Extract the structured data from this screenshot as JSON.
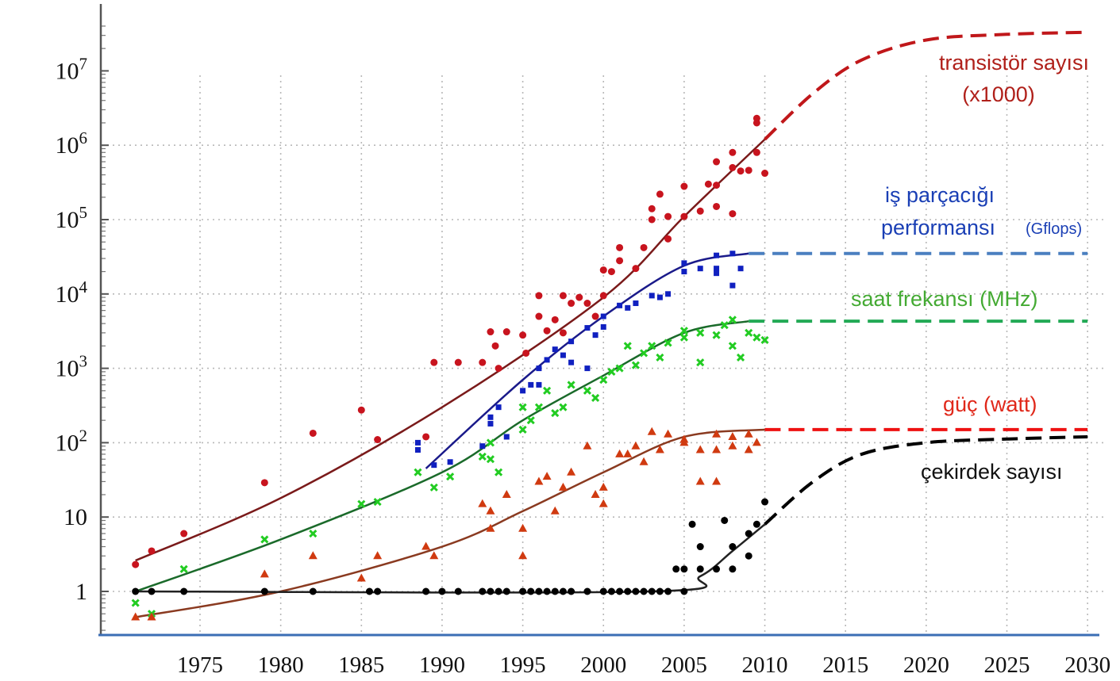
{
  "chart_data": {
    "type": "scatter",
    "title": "",
    "xlabel": "",
    "ylabel": "",
    "y_scale": "log",
    "xlim": [
      1969,
      2031
    ],
    "ylim": [
      0.26,
      40000000
    ],
    "grid": true,
    "x_ticks": [
      "1975",
      "1980",
      "1985",
      "1990",
      "1995",
      "2000",
      "2005",
      "2010",
      "2015",
      "2020",
      "2025",
      "2030"
    ],
    "x_tick_values": [
      1975,
      1980,
      1985,
      1990,
      1995,
      2000,
      2005,
      2010,
      2015,
      2020,
      2025,
      2030
    ],
    "y_ticks": [
      {
        "value": 10000000,
        "base": "10",
        "exp": "7"
      },
      {
        "value": 1000000,
        "base": "10",
        "exp": "6"
      },
      {
        "value": 100000,
        "base": "10",
        "exp": "5"
      },
      {
        "value": 10000,
        "base": "10",
        "exp": "4"
      },
      {
        "value": 1000,
        "base": "10",
        "exp": "3"
      },
      {
        "value": 100,
        "base": "10",
        "exp": "2"
      },
      {
        "value": 10,
        "base": "10",
        "exp": ""
      },
      {
        "value": 1,
        "base": "1",
        "exp": ""
      }
    ],
    "series": [
      {
        "name": "transistor-count",
        "label_lines": [
          "transistör sayısı",
          "(x1000)"
        ],
        "marker": "circle",
        "color": "#c8141e",
        "line_color": "#7a1a1a",
        "proj_color": "#c0171a",
        "points": [
          [
            1971,
            2.3
          ],
          [
            1972,
            3.5
          ],
          [
            1974,
            6
          ],
          [
            1979,
            29
          ],
          [
            1982,
            134
          ],
          [
            1985,
            275
          ],
          [
            1986,
            110
          ],
          [
            1989,
            120
          ],
          [
            1989.5,
            1200
          ],
          [
            1991,
            1200
          ],
          [
            1992.5,
            1200
          ],
          [
            1993,
            3100
          ],
          [
            1993.5,
            1000
          ],
          [
            1994,
            3100
          ],
          [
            1993.3,
            2000
          ],
          [
            1995,
            2800
          ],
          [
            1995.2,
            1600
          ],
          [
            1996,
            9500
          ],
          [
            1996,
            5000
          ],
          [
            1996.5,
            3200
          ],
          [
            1997,
            4500
          ],
          [
            1997.5,
            9500
          ],
          [
            1998,
            7500
          ],
          [
            1998.5,
            9000
          ],
          [
            1999,
            7500
          ],
          [
            1999.5,
            5000
          ],
          [
            1997.5,
            3000
          ],
          [
            2000,
            9500
          ],
          [
            2000,
            21000
          ],
          [
            2000.5,
            20000
          ],
          [
            2001,
            28000
          ],
          [
            2001,
            42000
          ],
          [
            2002,
            22000
          ],
          [
            2002.5,
            42000
          ],
          [
            2003,
            100000
          ],
          [
            2003,
            140000
          ],
          [
            2003.5,
            220000
          ],
          [
            2004,
            110000
          ],
          [
            2004,
            55000
          ],
          [
            2005,
            280000
          ],
          [
            2005,
            110000
          ],
          [
            2006,
            130000
          ],
          [
            2006.5,
            300000
          ],
          [
            2007,
            600000
          ],
          [
            2007,
            150000
          ],
          [
            2007,
            290000
          ],
          [
            2008,
            800000
          ],
          [
            2008,
            500000
          ],
          [
            2008,
            120000
          ],
          [
            2008.5,
            450000
          ],
          [
            2009,
            460000
          ],
          [
            2009.5,
            800000
          ],
          [
            2009.5,
            2000000
          ],
          [
            2009.5,
            2300000
          ],
          [
            2010,
            420000
          ]
        ],
        "trend": [
          [
            1971,
            2.6
          ],
          [
            1980,
            18
          ],
          [
            1990,
            300
          ],
          [
            2000,
            9000
          ],
          [
            2005,
            110000
          ],
          [
            2010,
            1200000
          ]
        ],
        "projection": [
          [
            2010,
            1200000
          ],
          [
            2013,
            5000000
          ],
          [
            2016,
            14000000
          ],
          [
            2020,
            26000000
          ],
          [
            2025,
            31000000
          ],
          [
            2030,
            33000000
          ]
        ]
      },
      {
        "name": "single-thread-performance",
        "label_lines": [
          "iş parçacığı",
          "performansı",
          "(Gflops)"
        ],
        "marker": "square",
        "color": "#1020c0",
        "line_color": "#1a1a8a",
        "proj_color": "#4a7fc0",
        "points": [
          [
            1988.5,
            80
          ],
          [
            1988.5,
            100
          ],
          [
            1989.5,
            50
          ],
          [
            1990.5,
            55
          ],
          [
            1992.5,
            90
          ],
          [
            1993,
            180
          ],
          [
            1993,
            220
          ],
          [
            1993.5,
            300
          ],
          [
            1994,
            120
          ],
          [
            1995,
            500
          ],
          [
            1995.5,
            600
          ],
          [
            1996,
            1000
          ],
          [
            1996,
            600
          ],
          [
            1996.5,
            1300
          ],
          [
            1997,
            1800
          ],
          [
            1997.5,
            1500
          ],
          [
            1998,
            2300
          ],
          [
            1998,
            1200
          ],
          [
            1999,
            3500
          ],
          [
            1999,
            1000
          ],
          [
            1999.5,
            2800
          ],
          [
            2000,
            5000
          ],
          [
            2000,
            3600
          ],
          [
            2001,
            7000
          ],
          [
            2001.5,
            6500
          ],
          [
            2002,
            7500
          ],
          [
            2003,
            9500
          ],
          [
            2003.5,
            9000
          ],
          [
            2004,
            10000
          ],
          [
            2005,
            20000
          ],
          [
            2005,
            26000
          ],
          [
            2006,
            22000
          ],
          [
            2007,
            33000
          ],
          [
            2007,
            22000
          ],
          [
            2007,
            19000
          ],
          [
            2008,
            35000
          ],
          [
            2008,
            13000
          ],
          [
            2008.5,
            22000
          ]
        ],
        "trend": [
          [
            1989,
            45
          ],
          [
            1995,
            700
          ],
          [
            2000,
            5000
          ],
          [
            2005,
            24000
          ],
          [
            2009,
            35000
          ]
        ],
        "projection": [
          [
            2009,
            35000
          ],
          [
            2030,
            35000
          ]
        ]
      },
      {
        "name": "clock-frequency",
        "label_lines": [
          "saat frekansı (MHz)"
        ],
        "marker": "x",
        "color": "#22cc22",
        "line_color": "#1a6a2a",
        "proj_color": "#22aa55",
        "points": [
          [
            1971,
            0.7
          ],
          [
            1972,
            0.5
          ],
          [
            1974,
            2
          ],
          [
            1979,
            5
          ],
          [
            1982,
            6
          ],
          [
            1985,
            15
          ],
          [
            1986,
            16
          ],
          [
            1988.5,
            40
          ],
          [
            1989.5,
            25
          ],
          [
            1990.5,
            35
          ],
          [
            1992.5,
            65
          ],
          [
            1993,
            100
          ],
          [
            1993,
            60
          ],
          [
            1993.5,
            40
          ],
          [
            1995,
            150
          ],
          [
            1995,
            300
          ],
          [
            1995.5,
            200
          ],
          [
            1996,
            300
          ],
          [
            1996.5,
            500
          ],
          [
            1997,
            250
          ],
          [
            1997.5,
            300
          ],
          [
            1998,
            600
          ],
          [
            1999,
            500
          ],
          [
            1999.5,
            400
          ],
          [
            2000,
            700
          ],
          [
            2000.5,
            900
          ],
          [
            2001,
            1000
          ],
          [
            2001.5,
            2000
          ],
          [
            2002,
            1100
          ],
          [
            2002.5,
            1600
          ],
          [
            2003,
            2000
          ],
          [
            2003.5,
            1400
          ],
          [
            2004,
            2200
          ],
          [
            2005,
            3200
          ],
          [
            2005,
            2600
          ],
          [
            2006,
            1200
          ],
          [
            2006,
            3000
          ],
          [
            2007,
            2800
          ],
          [
            2007.5,
            3800
          ],
          [
            2008,
            2000
          ],
          [
            2008,
            4500
          ],
          [
            2008.5,
            1400
          ],
          [
            2009,
            3000
          ],
          [
            2009.5,
            2600
          ],
          [
            2010,
            2400
          ]
        ],
        "trend": [
          [
            1971,
            1
          ],
          [
            1980,
            5
          ],
          [
            1990,
            40
          ],
          [
            1995,
            200
          ],
          [
            2000,
            800
          ],
          [
            2005,
            3000
          ],
          [
            2009,
            4300
          ]
        ],
        "projection": [
          [
            2009,
            4300
          ],
          [
            2030,
            4300
          ]
        ]
      },
      {
        "name": "power",
        "label_lines": [
          "güç (watt)"
        ],
        "marker": "triangle",
        "color": "#d03a10",
        "line_color": "#8a3a20",
        "proj_color": "#ee1111",
        "points": [
          [
            1971,
            0.45
          ],
          [
            1972,
            0.45
          ],
          [
            1979,
            1.7
          ],
          [
            1982,
            3
          ],
          [
            1985,
            1.5
          ],
          [
            1986,
            3
          ],
          [
            1989,
            4
          ],
          [
            1989.5,
            3
          ],
          [
            1992.5,
            15
          ],
          [
            1993,
            12
          ],
          [
            1993,
            7
          ],
          [
            1994,
            20
          ],
          [
            1995,
            7
          ],
          [
            1995,
            3
          ],
          [
            1996,
            30
          ],
          [
            1996.5,
            35
          ],
          [
            1997,
            12
          ],
          [
            1997.5,
            25
          ],
          [
            1998,
            40
          ],
          [
            1999,
            90
          ],
          [
            1999.5,
            20
          ],
          [
            2000,
            15
          ],
          [
            2000,
            25
          ],
          [
            2001,
            70
          ],
          [
            2001.5,
            70
          ],
          [
            2002,
            90
          ],
          [
            2002.5,
            55
          ],
          [
            2003,
            140
          ],
          [
            2003.5,
            80
          ],
          [
            2004,
            130
          ],
          [
            2005,
            100
          ],
          [
            2005,
            110
          ],
          [
            2006,
            80
          ],
          [
            2006,
            30
          ],
          [
            2007,
            130
          ],
          [
            2007,
            80
          ],
          [
            2007,
            30
          ],
          [
            2008,
            120
          ],
          [
            2008,
            90
          ],
          [
            2009,
            80
          ],
          [
            2009,
            130
          ],
          [
            2009.5,
            100
          ]
        ],
        "trend": [
          [
            1971,
            0.45
          ],
          [
            1980,
            1
          ],
          [
            1990,
            4
          ],
          [
            1995,
            12
          ],
          [
            2000,
            40
          ],
          [
            2005,
            120
          ],
          [
            2010,
            150
          ]
        ],
        "projection": [
          [
            2010,
            150
          ],
          [
            2030,
            150
          ]
        ]
      },
      {
        "name": "core-count",
        "label_lines": [
          "çekirdek sayısı"
        ],
        "marker": "circle",
        "color": "#000000",
        "line_color": "#222222",
        "proj_color": "#000000",
        "points": [
          [
            1971,
            1
          ],
          [
            1972,
            1
          ],
          [
            1974,
            1
          ],
          [
            1979,
            1
          ],
          [
            1982,
            1
          ],
          [
            1985.5,
            1
          ],
          [
            1986,
            1
          ],
          [
            1989,
            1
          ],
          [
            1990,
            1
          ],
          [
            1991,
            1
          ],
          [
            1992.5,
            1
          ],
          [
            1993,
            1
          ],
          [
            1993.5,
            1
          ],
          [
            1994,
            1
          ],
          [
            1995,
            1
          ],
          [
            1995.5,
            1
          ],
          [
            1996,
            1
          ],
          [
            1996.5,
            1
          ],
          [
            1997,
            1
          ],
          [
            1997.5,
            1
          ],
          [
            1998,
            1
          ],
          [
            1999,
            1
          ],
          [
            2000,
            1
          ],
          [
            2000.5,
            1
          ],
          [
            2001,
            1
          ],
          [
            2001.5,
            1
          ],
          [
            2002,
            1
          ],
          [
            2002.5,
            1
          ],
          [
            2003,
            1
          ],
          [
            2003.5,
            1
          ],
          [
            2004,
            1
          ],
          [
            2005,
            1
          ],
          [
            2004.5,
            2
          ],
          [
            2005,
            2
          ],
          [
            2005.5,
            8
          ],
          [
            2006,
            2
          ],
          [
            2006,
            4
          ],
          [
            2007,
            2
          ],
          [
            2007.5,
            9
          ],
          [
            2008,
            2
          ],
          [
            2008,
            4
          ],
          [
            2009,
            3
          ],
          [
            2009,
            6
          ],
          [
            2009.5,
            8
          ],
          [
            2010,
            16
          ]
        ],
        "trend": [
          [
            1971,
            1
          ],
          [
            2003,
            1
          ],
          [
            2006,
            1.6
          ],
          [
            2008,
            3.5
          ],
          [
            2010,
            8
          ]
        ],
        "projection": [
          [
            2010,
            8
          ],
          [
            2013,
            30
          ],
          [
            2016,
            70
          ],
          [
            2020,
            100
          ],
          [
            2025,
            112
          ],
          [
            2030,
            120
          ]
        ]
      }
    ]
  }
}
